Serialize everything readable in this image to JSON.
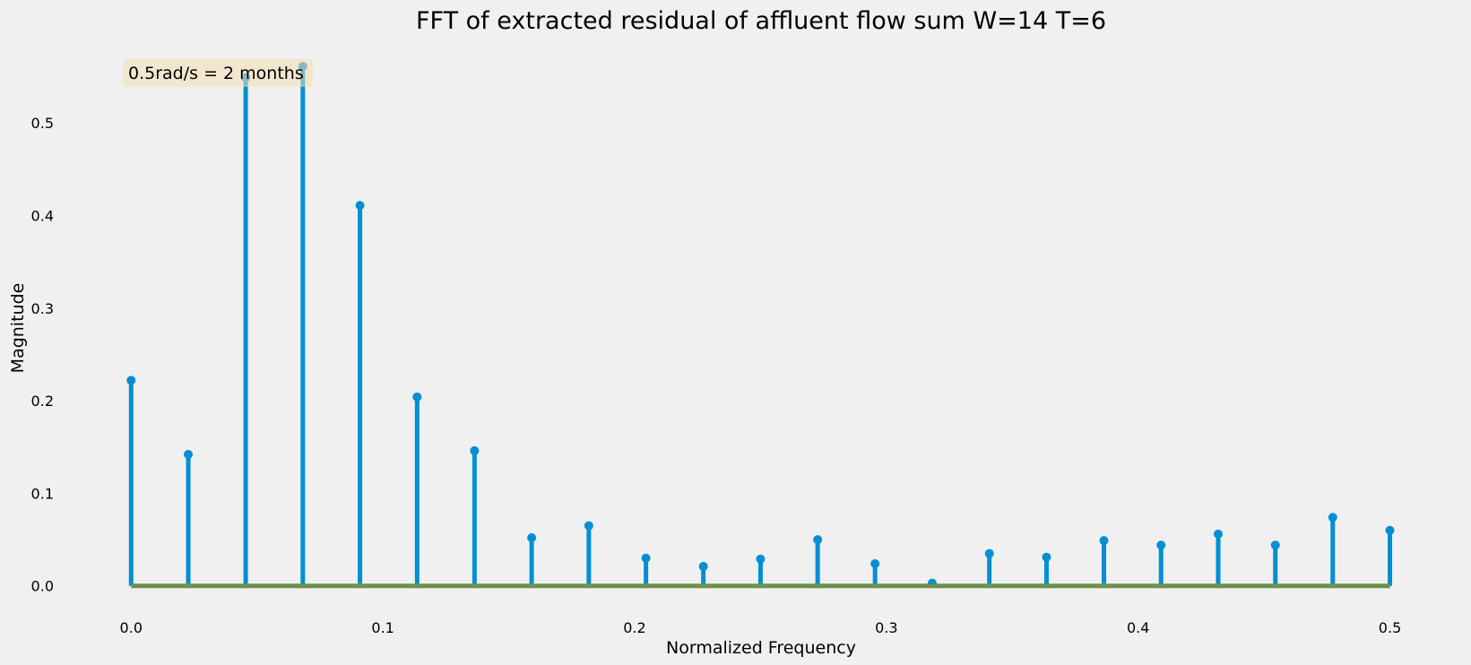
{
  "chart_data": {
    "type": "stem",
    "title": "FFT of extracted residual of affluent flow sum W=14 T=6",
    "xlabel": "Normalized Frequency",
    "ylabel": "Magnitude",
    "xlim": [
      -0.009,
      0.508
    ],
    "ylim": [
      -0.008,
      0.565
    ],
    "xticks": [
      0.0,
      0.1,
      0.2,
      0.3,
      0.4,
      0.5
    ],
    "xtick_labels": [
      "0.0",
      "0.1",
      "0.2",
      "0.3",
      "0.4",
      "0.5"
    ],
    "yticks": [
      0.0,
      0.1,
      0.2,
      0.3,
      0.4,
      0.5
    ],
    "ytick_labels": [
      "0.0",
      "0.1",
      "0.2",
      "0.3",
      "0.4",
      "0.5"
    ],
    "grid": false,
    "annotation": "0.5rad/s = 2 months",
    "x": [
      0.0,
      0.0227,
      0.0455,
      0.0682,
      0.0909,
      0.1136,
      0.1364,
      0.1591,
      0.1818,
      0.2045,
      0.2273,
      0.25,
      0.2727,
      0.2955,
      0.3182,
      0.3409,
      0.3636,
      0.3864,
      0.4091,
      0.4318,
      0.4545,
      0.4773,
      0.5
    ],
    "values": [
      0.222,
      0.142,
      0.549,
      0.561,
      0.411,
      0.204,
      0.146,
      0.052,
      0.065,
      0.03,
      0.021,
      0.029,
      0.05,
      0.024,
      0.003,
      0.035,
      0.031,
      0.049,
      0.044,
      0.056,
      0.044,
      0.074,
      0.06
    ],
    "colors": {
      "stem": "#008fd5",
      "baseline": "#6d904f",
      "background": "#f0f0f0",
      "annotation_box": "#f5deb3"
    }
  }
}
